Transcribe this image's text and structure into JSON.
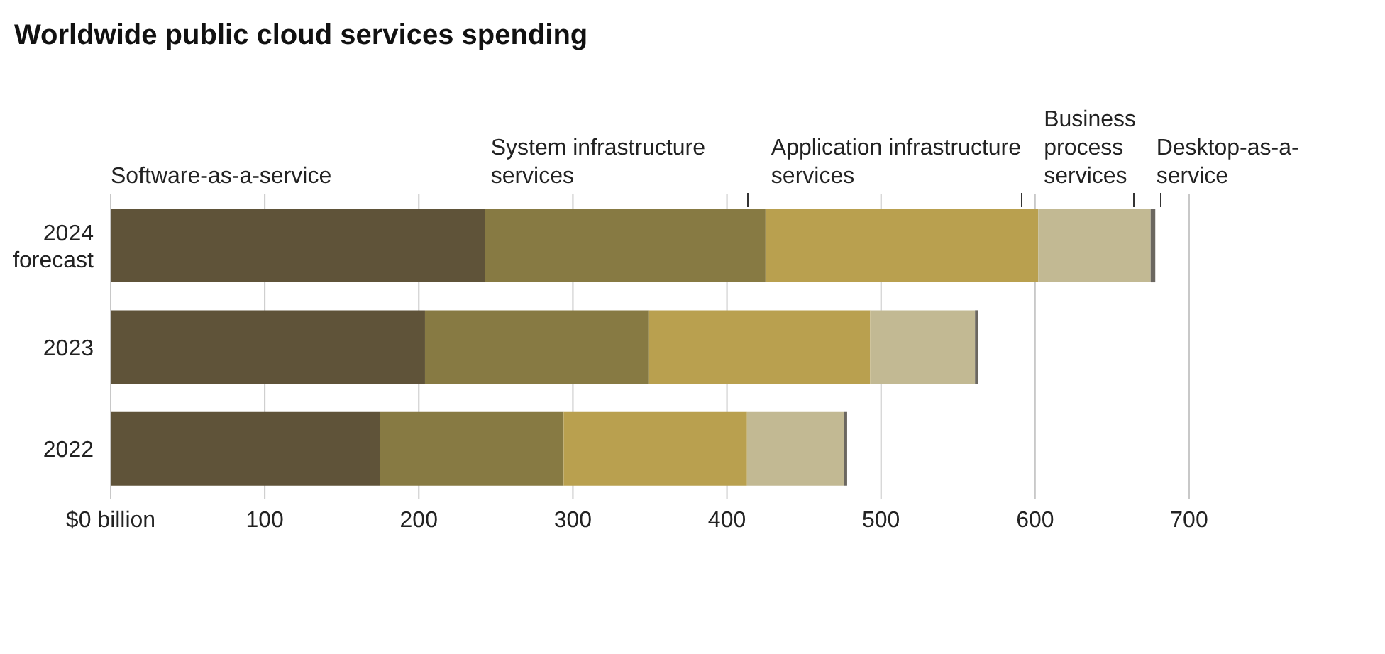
{
  "chart_data": {
    "type": "bar",
    "orientation": "horizontal",
    "stacked": true,
    "title": "Worldwide public cloud services spending",
    "categories": [
      "2024 forecast",
      "2023",
      "2022"
    ],
    "series": [
      {
        "name": "Software-as-a-service",
        "color": "#5f5339",
        "values": [
          243,
          204,
          175
        ]
      },
      {
        "name": "System infrastructure services",
        "color": "#877a43",
        "values": [
          182,
          145,
          119
        ]
      },
      {
        "name": "Application infrastructure services",
        "color": "#b9a04f",
        "values": [
          177,
          144,
          119
        ]
      },
      {
        "name": "Business process services",
        "color": "#c2b993",
        "values": [
          73,
          68,
          63
        ]
      },
      {
        "name": "Desktop-as-a-service",
        "color": "#6b6760",
        "values": [
          3,
          2,
          2
        ]
      }
    ],
    "xlim": [
      0,
      700
    ],
    "xticks": [
      {
        "value": 0,
        "label": "$0 billion"
      },
      100,
      200,
      300,
      400,
      500,
      600,
      700
    ],
    "grid": "x",
    "legend": false
  }
}
